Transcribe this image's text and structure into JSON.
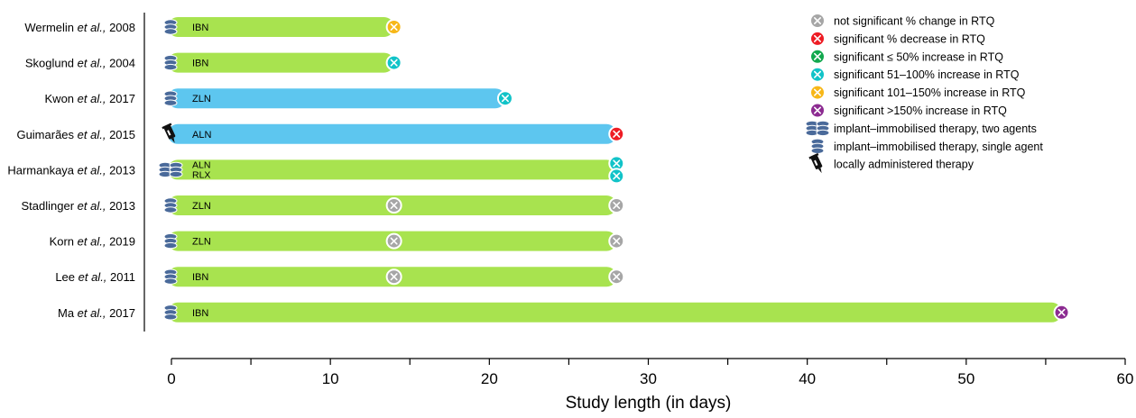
{
  "chart_data": {
    "type": "bar",
    "orientation": "horizontal",
    "xlabel": "Study length (in days)",
    "xlim": [
      0,
      60
    ],
    "xticks": [
      0,
      10,
      20,
      30,
      40,
      50,
      60
    ],
    "grid": false,
    "legend_position": "top-right",
    "studies": [
      {
        "author": "Wermelin",
        "etal": "et al.,",
        "year": "2008",
        "length": 14,
        "bar_color": "green",
        "drugs": [
          "IBN"
        ],
        "therapy": "single",
        "markers": [
          {
            "day": 14,
            "cat": "inc101_150"
          }
        ]
      },
      {
        "author": "Skoglund",
        "etal": "et al.,",
        "year": "2004",
        "length": 14,
        "bar_color": "green",
        "drugs": [
          "IBN"
        ],
        "therapy": "single",
        "markers": [
          {
            "day": 14,
            "cat": "inc51_100"
          }
        ]
      },
      {
        "author": "Kwon",
        "etal": "et al.,",
        "year": "2017",
        "length": 21,
        "bar_color": "blue",
        "drugs": [
          "ZLN"
        ],
        "therapy": "single",
        "markers": [
          {
            "day": 21,
            "cat": "inc51_100"
          }
        ]
      },
      {
        "author": "Guimarães",
        "etal": "et al.,",
        "year": "2015",
        "length": 28,
        "bar_color": "blue",
        "drugs": [
          "ALN"
        ],
        "therapy": "local",
        "markers": [
          {
            "day": 28,
            "cat": "decrease"
          }
        ]
      },
      {
        "author": "Harmankaya",
        "etal": "et al.,",
        "year": "2013",
        "length": 28,
        "bar_color": "green",
        "drugs": [
          "ALN",
          "RLX"
        ],
        "therapy": "two",
        "markers": [
          {
            "day": 28,
            "cat": "inc51_100"
          },
          {
            "day": 28,
            "cat": "inc51_100"
          }
        ]
      },
      {
        "author": "Stadlinger",
        "etal": "et al.,",
        "year": "2013",
        "length": 28,
        "bar_color": "green",
        "drugs": [
          "ZLN"
        ],
        "therapy": "single",
        "markers": [
          {
            "day": 14,
            "cat": "ns"
          },
          {
            "day": 28,
            "cat": "ns"
          }
        ]
      },
      {
        "author": "Korn",
        "etal": "et al.,",
        "year": "2019",
        "length": 28,
        "bar_color": "green",
        "drugs": [
          "ZLN"
        ],
        "therapy": "single",
        "markers": [
          {
            "day": 14,
            "cat": "ns"
          },
          {
            "day": 28,
            "cat": "ns"
          }
        ]
      },
      {
        "author": "Lee",
        "etal": "et al.,",
        "year": "2011",
        "length": 28,
        "bar_color": "green",
        "drugs": [
          "IBN"
        ],
        "therapy": "single",
        "markers": [
          {
            "day": 14,
            "cat": "ns"
          },
          {
            "day": 28,
            "cat": "ns"
          }
        ]
      },
      {
        "author": "Ma",
        "etal": "et al.,",
        "year": "2017",
        "length": 56,
        "bar_color": "green",
        "drugs": [
          "IBN"
        ],
        "therapy": "single",
        "markers": [
          {
            "day": 56,
            "cat": "inc_over150"
          }
        ]
      }
    ],
    "marker_colors": {
      "ns": "#a6a6a6",
      "decrease": "#ee1c24",
      "inc_le50": "#12a84e",
      "inc51_100": "#11c3c8",
      "inc101_150": "#f7b718",
      "inc_over150": "#8c2b91"
    },
    "bar_colors": {
      "green": "#a8e34f",
      "blue": "#5dc6ef"
    },
    "legend": [
      {
        "kind": "marker",
        "cat": "ns",
        "label": "not significant % change in RTQ"
      },
      {
        "kind": "marker",
        "cat": "decrease",
        "label": "significant % decrease in RTQ"
      },
      {
        "kind": "marker",
        "cat": "inc_le50",
        "label": "significant ≤ 50% increase in RTQ"
      },
      {
        "kind": "marker",
        "cat": "inc51_100",
        "label": "significant 51–100% increase in RTQ"
      },
      {
        "kind": "marker",
        "cat": "inc101_150",
        "label": "significant 101–150% increase in RTQ"
      },
      {
        "kind": "marker",
        "cat": "inc_over150",
        "label": "significant >150% increase in RTQ"
      },
      {
        "kind": "therapy",
        "therapy": "two",
        "label": "implant–immobilised therapy, two agents"
      },
      {
        "kind": "therapy",
        "therapy": "single",
        "label": "implant–immobilised therapy, single agent"
      },
      {
        "kind": "therapy",
        "therapy": "local",
        "label": "locally administered therapy"
      }
    ]
  }
}
